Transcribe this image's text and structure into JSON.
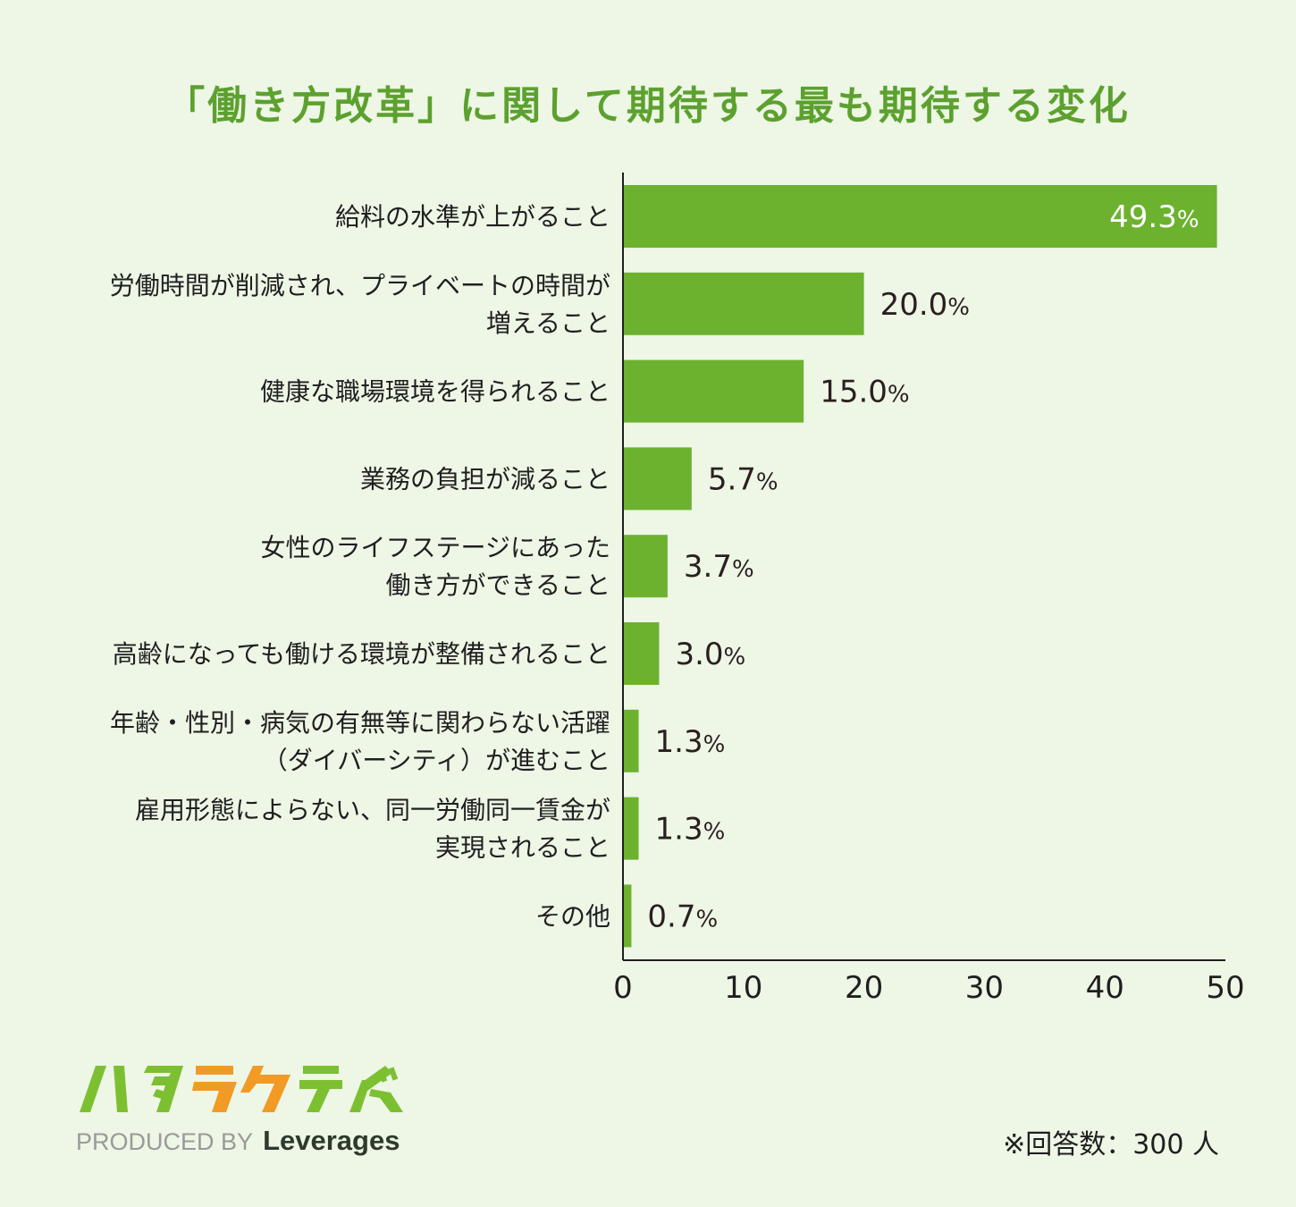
{
  "title": "「働き方改革」に関して期待する最も期待する変化",
  "chart_data": {
    "type": "bar",
    "orientation": "horizontal",
    "categories": [
      [
        "給料の水準が上がること"
      ],
      [
        "労働時間が削減され、プライベートの時間が",
        "増えること"
      ],
      [
        "健康な職場環境を得られること"
      ],
      [
        "業務の負担が減ること"
      ],
      [
        "女性のライフステージにあった",
        "働き方ができること"
      ],
      [
        "高齢になっても働ける環境が整備されること"
      ],
      [
        "年齢・性別・病気の有無等に関わらない活躍",
        "（ダイバーシティ）が進むこと"
      ],
      [
        "雇用形態によらない、同一労働同一賃金が",
        "実現されること"
      ],
      [
        "その他"
      ]
    ],
    "values": [
      49.3,
      20.0,
      15.0,
      5.7,
      3.7,
      3.0,
      1.3,
      1.3,
      0.7
    ],
    "value_labels": [
      "49.3",
      "20.0",
      "15.0",
      "5.7",
      "3.7",
      "3.0",
      "1.3",
      "1.3",
      "0.7"
    ],
    "value_suffix": "%",
    "xlim": [
      0,
      50
    ],
    "xticks": [
      "0",
      "10",
      "20",
      "30",
      "40",
      "50"
    ],
    "bar_color": "#6cb22f",
    "grid": false,
    "legend": "none"
  },
  "logo": {
    "text": "ハタラクティブ",
    "colors": [
      "#7cc032",
      "#7cc032",
      "#f19a26",
      "#f19a26",
      "#7cc032",
      "#7cc032"
    ]
  },
  "produced_by": {
    "prefix": "PRODUCED BY",
    "brand": "Leverages"
  },
  "footnote": "※回答数：300 人"
}
